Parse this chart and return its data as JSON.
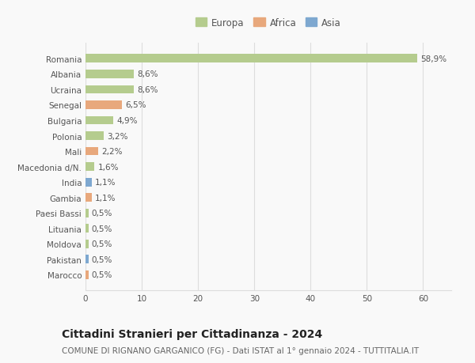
{
  "categories": [
    "Romania",
    "Albania",
    "Ucraina",
    "Senegal",
    "Bulgaria",
    "Polonia",
    "Mali",
    "Macedonia d/N.",
    "India",
    "Gambia",
    "Paesi Bassi",
    "Lituania",
    "Moldova",
    "Pakistan",
    "Marocco"
  ],
  "values": [
    58.9,
    8.6,
    8.6,
    6.5,
    4.9,
    3.2,
    2.2,
    1.6,
    1.1,
    1.1,
    0.5,
    0.5,
    0.5,
    0.5,
    0.5
  ],
  "labels": [
    "58,9%",
    "8,6%",
    "8,6%",
    "6,5%",
    "4,9%",
    "3,2%",
    "2,2%",
    "1,6%",
    "1,1%",
    "1,1%",
    "0,5%",
    "0,5%",
    "0,5%",
    "0,5%",
    "0,5%"
  ],
  "continents": [
    "Europa",
    "Europa",
    "Europa",
    "Africa",
    "Europa",
    "Europa",
    "Africa",
    "Europa",
    "Asia",
    "Africa",
    "Europa",
    "Europa",
    "Europa",
    "Asia",
    "Africa"
  ],
  "colors": {
    "Europa": "#b5cc8e",
    "Africa": "#e8a87c",
    "Asia": "#7ea8d0"
  },
  "background_color": "#f9f9f9",
  "grid_color": "#dddddd",
  "title": "Cittadini Stranieri per Cittadinanza - 2024",
  "subtitle": "COMUNE DI RIGNANO GARGANICO (FG) - Dati ISTAT al 1° gennaio 2024 - TUTTITALIA.IT",
  "xlim": [
    0,
    65
  ],
  "xticks": [
    0,
    10,
    20,
    30,
    40,
    50,
    60
  ],
  "bar_height": 0.55,
  "title_fontsize": 10,
  "subtitle_fontsize": 7.5,
  "tick_fontsize": 7.5,
  "label_fontsize": 7.5,
  "legend_fontsize": 8.5
}
